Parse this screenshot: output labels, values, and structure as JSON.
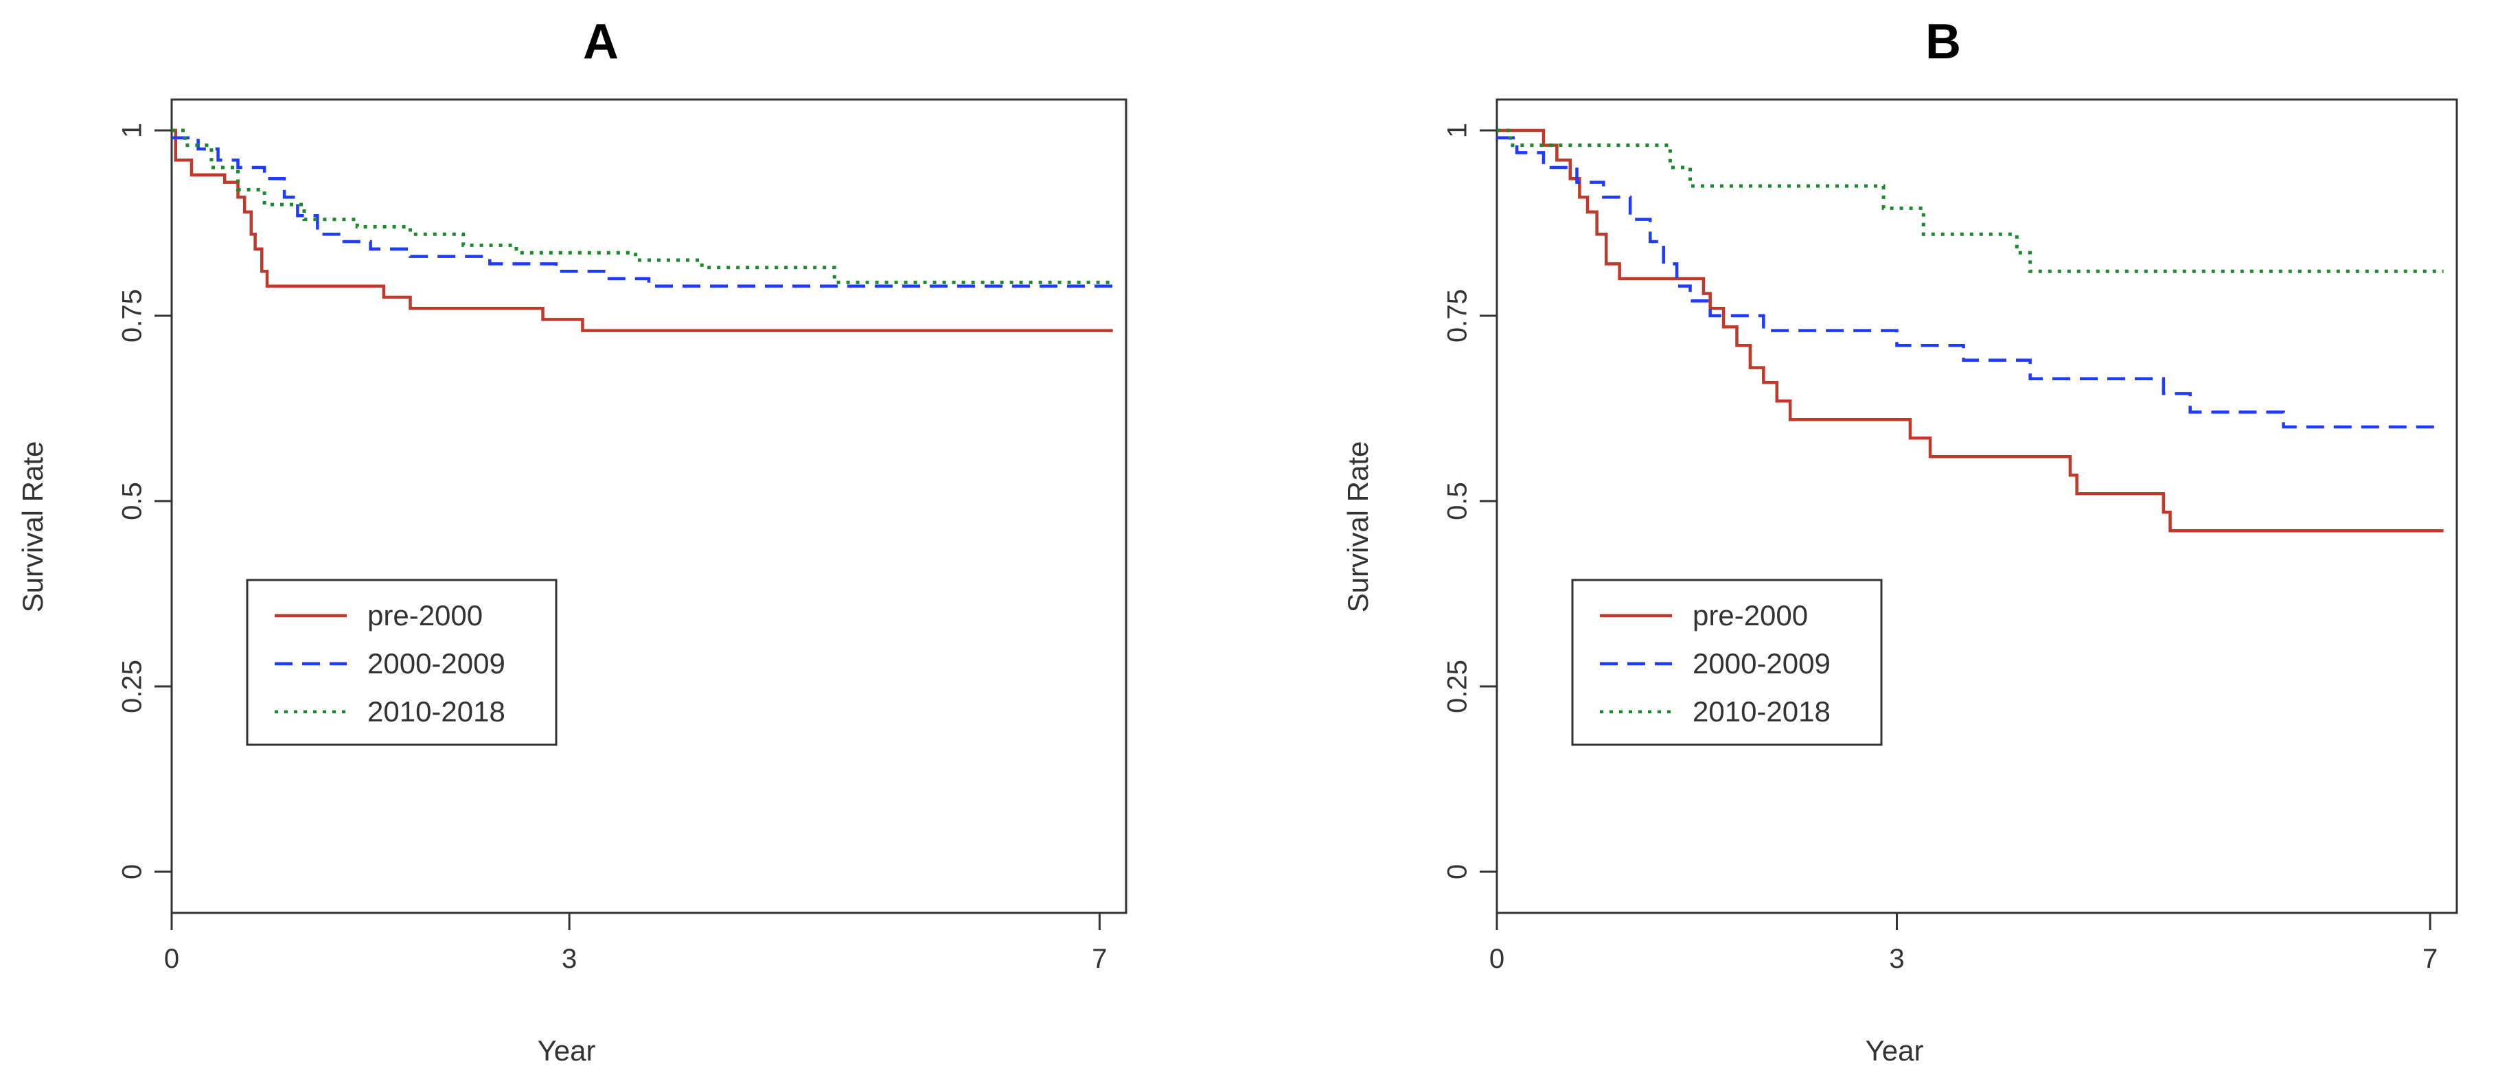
{
  "chart_data": [
    {
      "type": "line",
      "step": true,
      "title": "A",
      "xlabel": "Year",
      "ylabel": "Survival Rate",
      "xlim": [
        0,
        7.2
      ],
      "ylim": [
        0,
        1
      ],
      "x_ticks": [
        0,
        3,
        7
      ],
      "x_tick_labels": [
        "0",
        "3",
        "7"
      ],
      "y_ticks": [
        0,
        0.25,
        0.5,
        0.75,
        1
      ],
      "y_tick_labels": [
        "0",
        "0.25",
        "0.5",
        "0.75",
        "1"
      ],
      "legend_position": "center-left",
      "series": [
        {
          "name": "pre-2000",
          "color": "#c0392b",
          "dash": "solid",
          "points": [
            [
              0,
              1
            ],
            [
              0.03,
              0.96
            ],
            [
              0.15,
              0.94
            ],
            [
              0.4,
              0.93
            ],
            [
              0.5,
              0.91
            ],
            [
              0.55,
              0.89
            ],
            [
              0.6,
              0.86
            ],
            [
              0.63,
              0.84
            ],
            [
              0.68,
              0.81
            ],
            [
              0.72,
              0.79
            ],
            [
              1.6,
              0.775
            ],
            [
              1.8,
              0.76
            ],
            [
              2.8,
              0.745
            ],
            [
              3.1,
              0.73
            ],
            [
              7.1,
              0.73
            ]
          ]
        },
        {
          "name": "2000-2009",
          "color": "#1f3bff",
          "dash": "dashed",
          "points": [
            [
              0,
              0.99
            ],
            [
              0.2,
              0.975
            ],
            [
              0.35,
              0.96
            ],
            [
              0.5,
              0.95
            ],
            [
              0.7,
              0.935
            ],
            [
              0.85,
              0.91
            ],
            [
              0.95,
              0.885
            ],
            [
              1.1,
              0.86
            ],
            [
              1.3,
              0.85
            ],
            [
              1.5,
              0.84
            ],
            [
              1.8,
              0.83
            ],
            [
              2.4,
              0.82
            ],
            [
              2.9,
              0.81
            ],
            [
              3.3,
              0.8
            ],
            [
              3.6,
              0.79
            ],
            [
              7.1,
              0.785
            ]
          ]
        },
        {
          "name": "2010-2018",
          "color": "#1a8a2a",
          "dash": "dotted",
          "points": [
            [
              0,
              1
            ],
            [
              0.1,
              0.98
            ],
            [
              0.3,
              0.95
            ],
            [
              0.5,
              0.92
            ],
            [
              0.7,
              0.9
            ],
            [
              1,
              0.88
            ],
            [
              1.4,
              0.87
            ],
            [
              1.8,
              0.86
            ],
            [
              2.2,
              0.845
            ],
            [
              2.6,
              0.835
            ],
            [
              3.5,
              0.825
            ],
            [
              4.0,
              0.815
            ],
            [
              5.0,
              0.795
            ],
            [
              7.1,
              0.795
            ]
          ]
        }
      ]
    },
    {
      "type": "line",
      "step": true,
      "title": "B",
      "xlabel": "Year",
      "ylabel": "Survival Rate",
      "xlim": [
        0,
        7.2
      ],
      "ylim": [
        0,
        1
      ],
      "x_ticks": [
        0,
        3,
        7
      ],
      "x_tick_labels": [
        "0",
        "3",
        "7"
      ],
      "y_ticks": [
        0,
        0.25,
        0.5,
        0.75,
        1
      ],
      "y_tick_labels": [
        "0",
        "0.25",
        "0.5",
        "0.75",
        "1"
      ],
      "legend_position": "center-left",
      "series": [
        {
          "name": "pre-2000",
          "color": "#c0392b",
          "dash": "solid",
          "points": [
            [
              0,
              1
            ],
            [
              0.35,
              0.98
            ],
            [
              0.45,
              0.96
            ],
            [
              0.55,
              0.935
            ],
            [
              0.62,
              0.91
            ],
            [
              0.68,
              0.89
            ],
            [
              0.75,
              0.86
            ],
            [
              0.82,
              0.82
            ],
            [
              0.92,
              0.8
            ],
            [
              1.55,
              0.78
            ],
            [
              1.6,
              0.76
            ],
            [
              1.7,
              0.735
            ],
            [
              1.8,
              0.71
            ],
            [
              1.9,
              0.68
            ],
            [
              2.0,
              0.66
            ],
            [
              2.1,
              0.635
            ],
            [
              2.2,
              0.61
            ],
            [
              3.1,
              0.585
            ],
            [
              3.25,
              0.56
            ],
            [
              4.3,
              0.535
            ],
            [
              4.35,
              0.51
            ],
            [
              5.0,
              0.485
            ],
            [
              5.05,
              0.46
            ],
            [
              7.1,
              0.46
            ]
          ]
        },
        {
          "name": "2000-2009",
          "color": "#1f3bff",
          "dash": "dashed",
          "points": [
            [
              0,
              0.99
            ],
            [
              0.15,
              0.97
            ],
            [
              0.35,
              0.95
            ],
            [
              0.6,
              0.93
            ],
            [
              0.8,
              0.91
            ],
            [
              1.0,
              0.88
            ],
            [
              1.15,
              0.85
            ],
            [
              1.25,
              0.82
            ],
            [
              1.35,
              0.79
            ],
            [
              1.45,
              0.77
            ],
            [
              1.6,
              0.75
            ],
            [
              2.0,
              0.73
            ],
            [
              3.0,
              0.71
            ],
            [
              3.5,
              0.69
            ],
            [
              4.0,
              0.665
            ],
            [
              5.0,
              0.645
            ],
            [
              5.2,
              0.62
            ],
            [
              5.9,
              0.6
            ],
            [
              7.1,
              0.6
            ]
          ]
        },
        {
          "name": "2010-2018",
          "color": "#1a8a2a",
          "dash": "dotted",
          "points": [
            [
              0,
              1
            ],
            [
              0.1,
              0.98
            ],
            [
              1.3,
              0.95
            ],
            [
              1.45,
              0.925
            ],
            [
              2.9,
              0.895
            ],
            [
              3.2,
              0.86
            ],
            [
              3.9,
              0.835
            ],
            [
              4.0,
              0.81
            ],
            [
              7.1,
              0.81
            ]
          ]
        }
      ]
    }
  ]
}
